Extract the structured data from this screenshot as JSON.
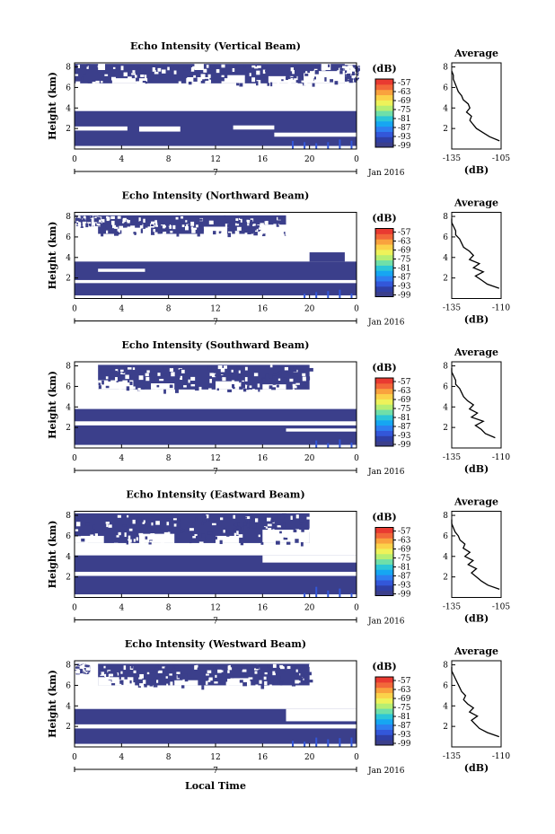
{
  "footer_xlabel": "Local Time",
  "colors": {
    "background_fill": "#3b3f8b",
    "colorbar": [
      "#3b3f8b",
      "#2f3fa6",
      "#3357d9",
      "#2e7ef0",
      "#16a6f2",
      "#2cc6d8",
      "#6fdfa9",
      "#b6ee73",
      "#eef25a",
      "#fbd24a",
      "#f9a23e",
      "#f2683a",
      "#e93a31"
    ]
  },
  "panels": [
    {
      "title": "Echo Intensity (Vertical Beam)",
      "ylabel": "Height (km)",
      "date_label": "Jan 2016",
      "day_tick_label": "7",
      "x_ticks": [
        "0",
        "4",
        "8",
        "12",
        "16",
        "20",
        "0"
      ],
      "y_ticks": [
        "2",
        "4",
        "6",
        "8"
      ],
      "colorbar": {
        "unit": "(dB)",
        "ticks": [
          "-57",
          "-63",
          "-69",
          "-75",
          "-81",
          "-87",
          "-93",
          "-99"
        ]
      },
      "avg": {
        "title": "Average",
        "xlabel": "(dB)",
        "x_ticks": [
          "-135",
          "-105"
        ],
        "y_ticks": [
          "2",
          "4",
          "6",
          "8"
        ],
        "xlim": [
          -135,
          -105
        ],
        "profile_heights_km": [
          0.8,
          1.2,
          1.6,
          2.0,
          2.4,
          2.8,
          3.2,
          3.6,
          4.0,
          4.4,
          4.8,
          5.2,
          5.6,
          6.0,
          6.4,
          6.8,
          7.2,
          7.6
        ],
        "profile_db": [
          -106,
          -112,
          -116,
          -120,
          -122,
          -124,
          -123,
          -126,
          -124,
          -125,
          -128,
          -129,
          -131,
          -132,
          -133,
          -134,
          -134,
          -135
        ]
      },
      "segments": [
        {
          "t0": 0,
          "t1": 24,
          "h0": 0.3,
          "h1": 3.7
        },
        {
          "t0": 0,
          "t1": 23,
          "h0": 6.4,
          "h1": 8.3
        },
        {
          "t0": 23,
          "t1": 24,
          "h0": 6.8,
          "h1": 8.2
        }
      ],
      "gaps": [
        {
          "t0": 3.2,
          "t1": 6.2,
          "h0": 6.4,
          "h1": 6.9
        },
        {
          "t0": 9.5,
          "t1": 11.5,
          "h0": 6.4,
          "h1": 7.0
        },
        {
          "t0": 12.5,
          "t1": 14.5,
          "h0": 6.4,
          "h1": 7.2
        },
        {
          "t0": 16.5,
          "t1": 19.0,
          "h0": 6.4,
          "h1": 7.1
        },
        {
          "t0": 19.5,
          "t1": 23.0,
          "h0": 6.4,
          "h1": 7.6
        },
        {
          "t0": 2.0,
          "t1": 2.6,
          "h0": 7.7,
          "h1": 8.3
        },
        {
          "t0": 10.2,
          "t1": 11.0,
          "h0": 7.7,
          "h1": 8.3
        },
        {
          "t0": 21.0,
          "t1": 21.8,
          "h0": 7.7,
          "h1": 8.3
        },
        {
          "t0": 0,
          "t1": 4.5,
          "h0": 1.8,
          "h1": 2.2
        },
        {
          "t0": 5.5,
          "t1": 9.0,
          "h0": 1.7,
          "h1": 2.2
        },
        {
          "t0": 13.5,
          "t1": 17.0,
          "h0": 1.9,
          "h1": 2.3
        },
        {
          "t0": 17.0,
          "t1": 24.0,
          "h0": 1.2,
          "h1": 1.6
        }
      ],
      "hot_columns": [
        18,
        19,
        20,
        21,
        22,
        23
      ]
    },
    {
      "title": "Echo Intensity (Northward Beam)",
      "ylabel": "Height (km)",
      "date_label": "Jan 2016",
      "day_tick_label": "7",
      "x_ticks": [
        "0",
        "4",
        "8",
        "12",
        "16",
        "20",
        "0"
      ],
      "y_ticks": [
        "2",
        "4",
        "6",
        "8"
      ],
      "colorbar": {
        "unit": "(dB)",
        "ticks": [
          "-57",
          "-63",
          "-69",
          "-75",
          "-81",
          "-87",
          "-93",
          "-99"
        ]
      },
      "avg": {
        "title": "Average",
        "xlabel": "(dB)",
        "x_ticks": [
          "-135",
          "-110"
        ],
        "y_ticks": [
          "2",
          "4",
          "6",
          "8"
        ],
        "xlim": [
          -135,
          -110
        ],
        "profile_heights_km": [
          1.0,
          1.4,
          1.8,
          2.2,
          2.6,
          3.0,
          3.4,
          3.8,
          4.2,
          4.6,
          5.0,
          5.4,
          5.8,
          6.2,
          6.6,
          7.0,
          7.4,
          7.8
        ],
        "profile_db": [
          -111,
          -117,
          -120,
          -123,
          -119,
          -124,
          -121,
          -126,
          -124,
          -126,
          -129,
          -130,
          -131,
          -133,
          -133,
          -134,
          -135,
          -135
        ]
      },
      "segments": [
        {
          "t0": 0,
          "t1": 24,
          "h0": 0.3,
          "h1": 3.6
        },
        {
          "t0": 2,
          "t1": 18,
          "h0": 6.3,
          "h1": 8.1
        },
        {
          "t0": 0,
          "t1": 2,
          "h0": 7.3,
          "h1": 8.1
        },
        {
          "t0": 20,
          "t1": 23,
          "h0": 3.6,
          "h1": 4.5
        }
      ],
      "gaps": [
        {
          "t0": 4.0,
          "t1": 6.5,
          "h0": 6.3,
          "h1": 6.9
        },
        {
          "t0": 11.0,
          "t1": 13.0,
          "h0": 6.3,
          "h1": 7.0
        },
        {
          "t0": 15.5,
          "t1": 18.0,
          "h0": 6.3,
          "h1": 7.2
        },
        {
          "t0": 0,
          "t1": 24,
          "h0": 1.5,
          "h1": 1.8
        },
        {
          "t0": 2.0,
          "t1": 6.0,
          "h0": 2.6,
          "h1": 2.9
        }
      ],
      "hot_columns": [
        19,
        20,
        21,
        22,
        23
      ]
    },
    {
      "title": "Echo Intensity (Southward Beam)",
      "ylabel": "Height (km)",
      "date_label": "Jan 2016",
      "day_tick_label": "7",
      "x_ticks": [
        "0",
        "4",
        "8",
        "12",
        "16",
        "20",
        "0"
      ],
      "y_ticks": [
        "2",
        "4",
        "6",
        "8"
      ],
      "colorbar": {
        "unit": "(dB)",
        "ticks": [
          "-57",
          "-63",
          "-69",
          "-75",
          "-81",
          "-87",
          "-93",
          "-99"
        ]
      },
      "avg": {
        "title": "Average",
        "xlabel": "(dB)",
        "x_ticks": [
          "-135",
          "-110"
        ],
        "y_ticks": [
          "2",
          "4",
          "6",
          "8"
        ],
        "xlim": [
          -135,
          -110
        ],
        "profile_heights_km": [
          1.0,
          1.4,
          1.8,
          2.2,
          2.6,
          3.0,
          3.4,
          3.8,
          4.2,
          4.6,
          5.0,
          5.4,
          5.8,
          6.2,
          6.6,
          7.0,
          7.4,
          7.8
        ],
        "profile_db": [
          -113,
          -118,
          -120,
          -123,
          -119,
          -125,
          -122,
          -126,
          -124,
          -127,
          -129,
          -130,
          -131,
          -133,
          -133,
          -134,
          -135,
          -135
        ]
      },
      "segments": [
        {
          "t0": 0,
          "t1": 24,
          "h0": 0.3,
          "h1": 3.8
        },
        {
          "t0": 2,
          "t1": 20,
          "h0": 5.7,
          "h1": 8.1
        }
      ],
      "gaps": [
        {
          "t0": 2.0,
          "t1": 5.0,
          "h0": 5.7,
          "h1": 6.6
        },
        {
          "t0": 6.5,
          "t1": 8.5,
          "h0": 5.7,
          "h1": 6.3
        },
        {
          "t0": 12.0,
          "t1": 14.0,
          "h0": 5.7,
          "h1": 6.5
        },
        {
          "t0": 16.0,
          "t1": 18.0,
          "h0": 5.7,
          "h1": 6.2
        },
        {
          "t0": 0,
          "t1": 24,
          "h0": 2.2,
          "h1": 2.6
        },
        {
          "t0": 18.0,
          "t1": 24.0,
          "h0": 1.6,
          "h1": 1.9
        }
      ],
      "hot_columns": [
        20,
        21,
        22,
        23
      ]
    },
    {
      "title": "Echo Intensity (Eastward Beam)",
      "ylabel": "Height (km)",
      "date_label": "Jan 2016",
      "day_tick_label": "7",
      "x_ticks": [
        "0",
        "4",
        "8",
        "12",
        "16",
        "20",
        "0"
      ],
      "y_ticks": [
        "2",
        "4",
        "6",
        "8"
      ],
      "colorbar": {
        "unit": "(dB)",
        "ticks": [
          "-57",
          "-63",
          "-69",
          "-75",
          "-81",
          "-87",
          "-93",
          "-99"
        ]
      },
      "avg": {
        "title": "Average",
        "xlabel": "(dB)",
        "x_ticks": [
          "-135",
          "-105"
        ],
        "y_ticks": [
          "2",
          "4",
          "6",
          "8"
        ],
        "xlim": [
          -135,
          -105
        ],
        "profile_heights_km": [
          0.8,
          1.2,
          1.6,
          2.0,
          2.4,
          2.8,
          3.2,
          3.6,
          4.0,
          4.4,
          4.8,
          5.2,
          5.6,
          6.0,
          6.4,
          6.8,
          7.2,
          7.6
        ],
        "profile_db": [
          -106,
          -113,
          -117,
          -120,
          -123,
          -120,
          -125,
          -122,
          -127,
          -124,
          -128,
          -127,
          -130,
          -131,
          -133,
          -134,
          -135,
          -135
        ]
      },
      "segments": [
        {
          "t0": 0,
          "t1": 24,
          "h0": 0.3,
          "h1": 4.1
        },
        {
          "t0": 0,
          "t1": 20,
          "h0": 5.3,
          "h1": 8.2
        }
      ],
      "gaps": [
        {
          "t0": 0,
          "t1": 2.5,
          "h0": 5.3,
          "h1": 6.0
        },
        {
          "t0": 5.5,
          "t1": 8.5,
          "h0": 5.3,
          "h1": 6.2
        },
        {
          "t0": 12.0,
          "t1": 14.0,
          "h0": 5.3,
          "h1": 6.0
        },
        {
          "t0": 16.0,
          "t1": 20.0,
          "h0": 5.3,
          "h1": 6.6
        },
        {
          "t0": 0,
          "t1": 24,
          "h0": 2.1,
          "h1": 2.5
        },
        {
          "t0": 16.0,
          "t1": 24.0,
          "h0": 3.4,
          "h1": 4.1
        }
      ],
      "hot_columns": [
        19,
        20,
        21,
        22,
        23
      ]
    },
    {
      "title": "Echo Intensity (Westward Beam)",
      "ylabel": "Height (km)",
      "date_label": "Jan 2016",
      "day_tick_label": "7",
      "x_ticks": [
        "0",
        "4",
        "8",
        "12",
        "16",
        "20",
        "0"
      ],
      "y_ticks": [
        "2",
        "4",
        "6",
        "8"
      ],
      "colorbar": {
        "unit": "(dB)",
        "ticks": [
          "-57",
          "-63",
          "-69",
          "-75",
          "-81",
          "-87",
          "-93",
          "-99"
        ]
      },
      "avg": {
        "title": "Average",
        "xlabel": "(dB)",
        "x_ticks": [
          "-135",
          "-110"
        ],
        "y_ticks": [
          "2",
          "4",
          "6",
          "8"
        ],
        "xlim": [
          -135,
          -110
        ],
        "profile_heights_km": [
          1.0,
          1.4,
          1.8,
          2.2,
          2.6,
          3.0,
          3.4,
          3.8,
          4.2,
          4.6,
          5.0,
          5.4,
          5.8,
          6.2,
          6.6,
          7.0,
          7.4,
          7.8
        ],
        "profile_db": [
          -111,
          -117,
          -121,
          -123,
          -125,
          -122,
          -126,
          -124,
          -127,
          -129,
          -128,
          -130,
          -131,
          -132,
          -133,
          -134,
          -135,
          -135
        ]
      },
      "segments": [
        {
          "t0": 0,
          "t1": 24,
          "h0": 0.3,
          "h1": 3.7
        },
        {
          "t0": 2,
          "t1": 20,
          "h0": 6.0,
          "h1": 8.1
        },
        {
          "t0": 0,
          "t1": 1,
          "h0": 7.4,
          "h1": 8.1
        }
      ],
      "gaps": [
        {
          "t0": 2.0,
          "t1": 5.0,
          "h0": 6.0,
          "h1": 6.8
        },
        {
          "t0": 8.5,
          "t1": 10.5,
          "h0": 6.0,
          "h1": 6.5
        },
        {
          "t0": 13.0,
          "t1": 15.0,
          "h0": 6.0,
          "h1": 6.7
        },
        {
          "t0": 0,
          "t1": 24,
          "h0": 1.8,
          "h1": 2.2
        },
        {
          "t0": 18.0,
          "t1": 24.0,
          "h0": 2.5,
          "h1": 3.7
        }
      ],
      "hot_columns": [
        18,
        19,
        20,
        21,
        22,
        23
      ]
    }
  ]
}
